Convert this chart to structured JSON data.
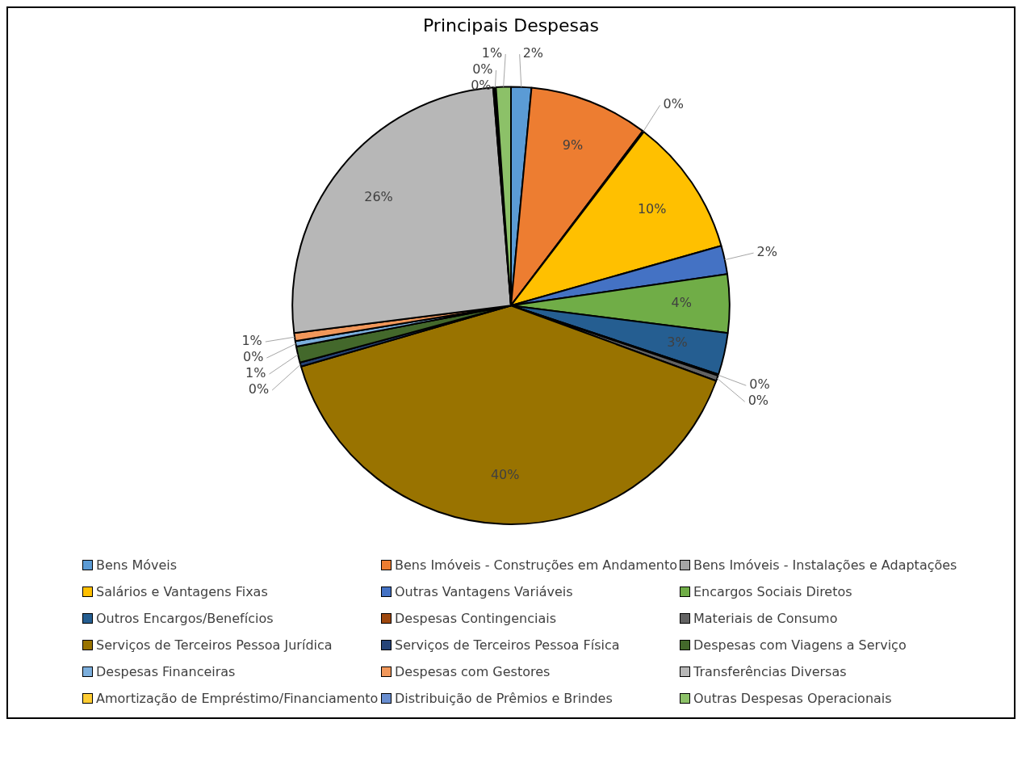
{
  "chart_data": {
    "type": "pie",
    "title": "Principais Despesas",
    "categories": [
      "Bens Móveis",
      "Bens Imóveis - Construções em Andamento",
      "Bens Imóveis - Instalações e Adaptações",
      "Salários e Vantagens Fixas",
      "Outras Vantagens Variáveis",
      "Encargos Sociais Diretos",
      "Outros Encargos/Benefícios",
      "Despesas Contingenciais",
      "Materiais de Consumo",
      "Serviços de Terceiros Pessoa Jurídica",
      "Serviços de Terceiros Pessoa Física",
      "Despesas com Viagens a Serviço",
      "Despesas Financeiras",
      "Despesas com Gestores",
      "Transferências Diversas",
      "Amortização de Empréstimo/Financiamento",
      "Distribuição de Prêmios e Brindes",
      "Outras Despesas Operacionais"
    ],
    "values": [
      1.5,
      8.8,
      0.1,
      10.2,
      2.1,
      4.3,
      3.1,
      0.1,
      0.4,
      39.9,
      0.3,
      1.2,
      0.4,
      0.6,
      25.7,
      0.1,
      0.1,
      1.1
    ],
    "value_labels": [
      "2%",
      "9%",
      "0%",
      "10%",
      "2%",
      "4%",
      "3%",
      "0%",
      "0%",
      "40%",
      "0%",
      "1%",
      "0%",
      "1%",
      "26%",
      "0%",
      "0%",
      "1%"
    ],
    "colors": [
      "#5b9bd5",
      "#ed7d31",
      "#a5a5a5",
      "#ffc000",
      "#4472c4",
      "#70ad47",
      "#255e91",
      "#9e480e",
      "#636363",
      "#997300",
      "#264478",
      "#43682b",
      "#7cafdd",
      "#f1975a",
      "#b7b7b7",
      "#ffcd33",
      "#698ed0",
      "#8cc168"
    ],
    "legend": "bottom"
  }
}
